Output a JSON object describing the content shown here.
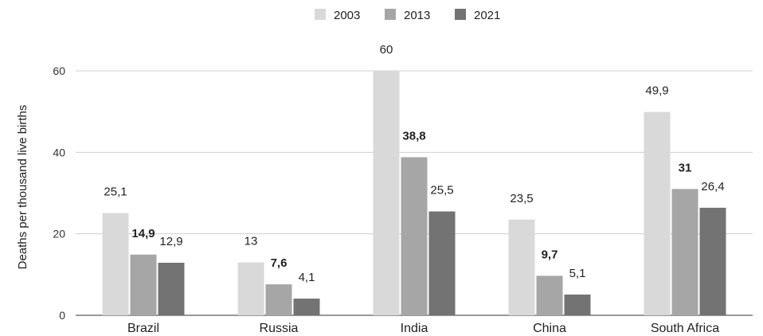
{
  "chart_data": {
    "type": "bar",
    "categories": [
      "Brazil",
      "Russia",
      "India",
      "China",
      "South Africa"
    ],
    "series": [
      {
        "name": "2003",
        "color": "#d9d9d9",
        "values": [
          25.1,
          13,
          60,
          23.5,
          49.9
        ],
        "labels": [
          "25,1",
          "13",
          "60",
          "23,5",
          "49,9"
        ],
        "bold": false
      },
      {
        "name": "2013",
        "color": "#a6a6a6",
        "values": [
          14.9,
          7.6,
          38.8,
          9.7,
          31
        ],
        "labels": [
          "14,9",
          "7,6",
          "38,8",
          "9,7",
          "31"
        ],
        "bold": true
      },
      {
        "name": "2021",
        "color": "#737373",
        "values": [
          12.9,
          4.1,
          25.5,
          5.1,
          26.4
        ],
        "labels": [
          "12,9",
          "4,1",
          "25,5",
          "5,1",
          "26,4"
        ],
        "bold": false
      }
    ],
    "ylabel": "Deaths per thousand live births",
    "ylim": [
      0,
      60
    ],
    "yticks": [
      0,
      20,
      40,
      60
    ],
    "grid": true,
    "legend": "top-center"
  }
}
